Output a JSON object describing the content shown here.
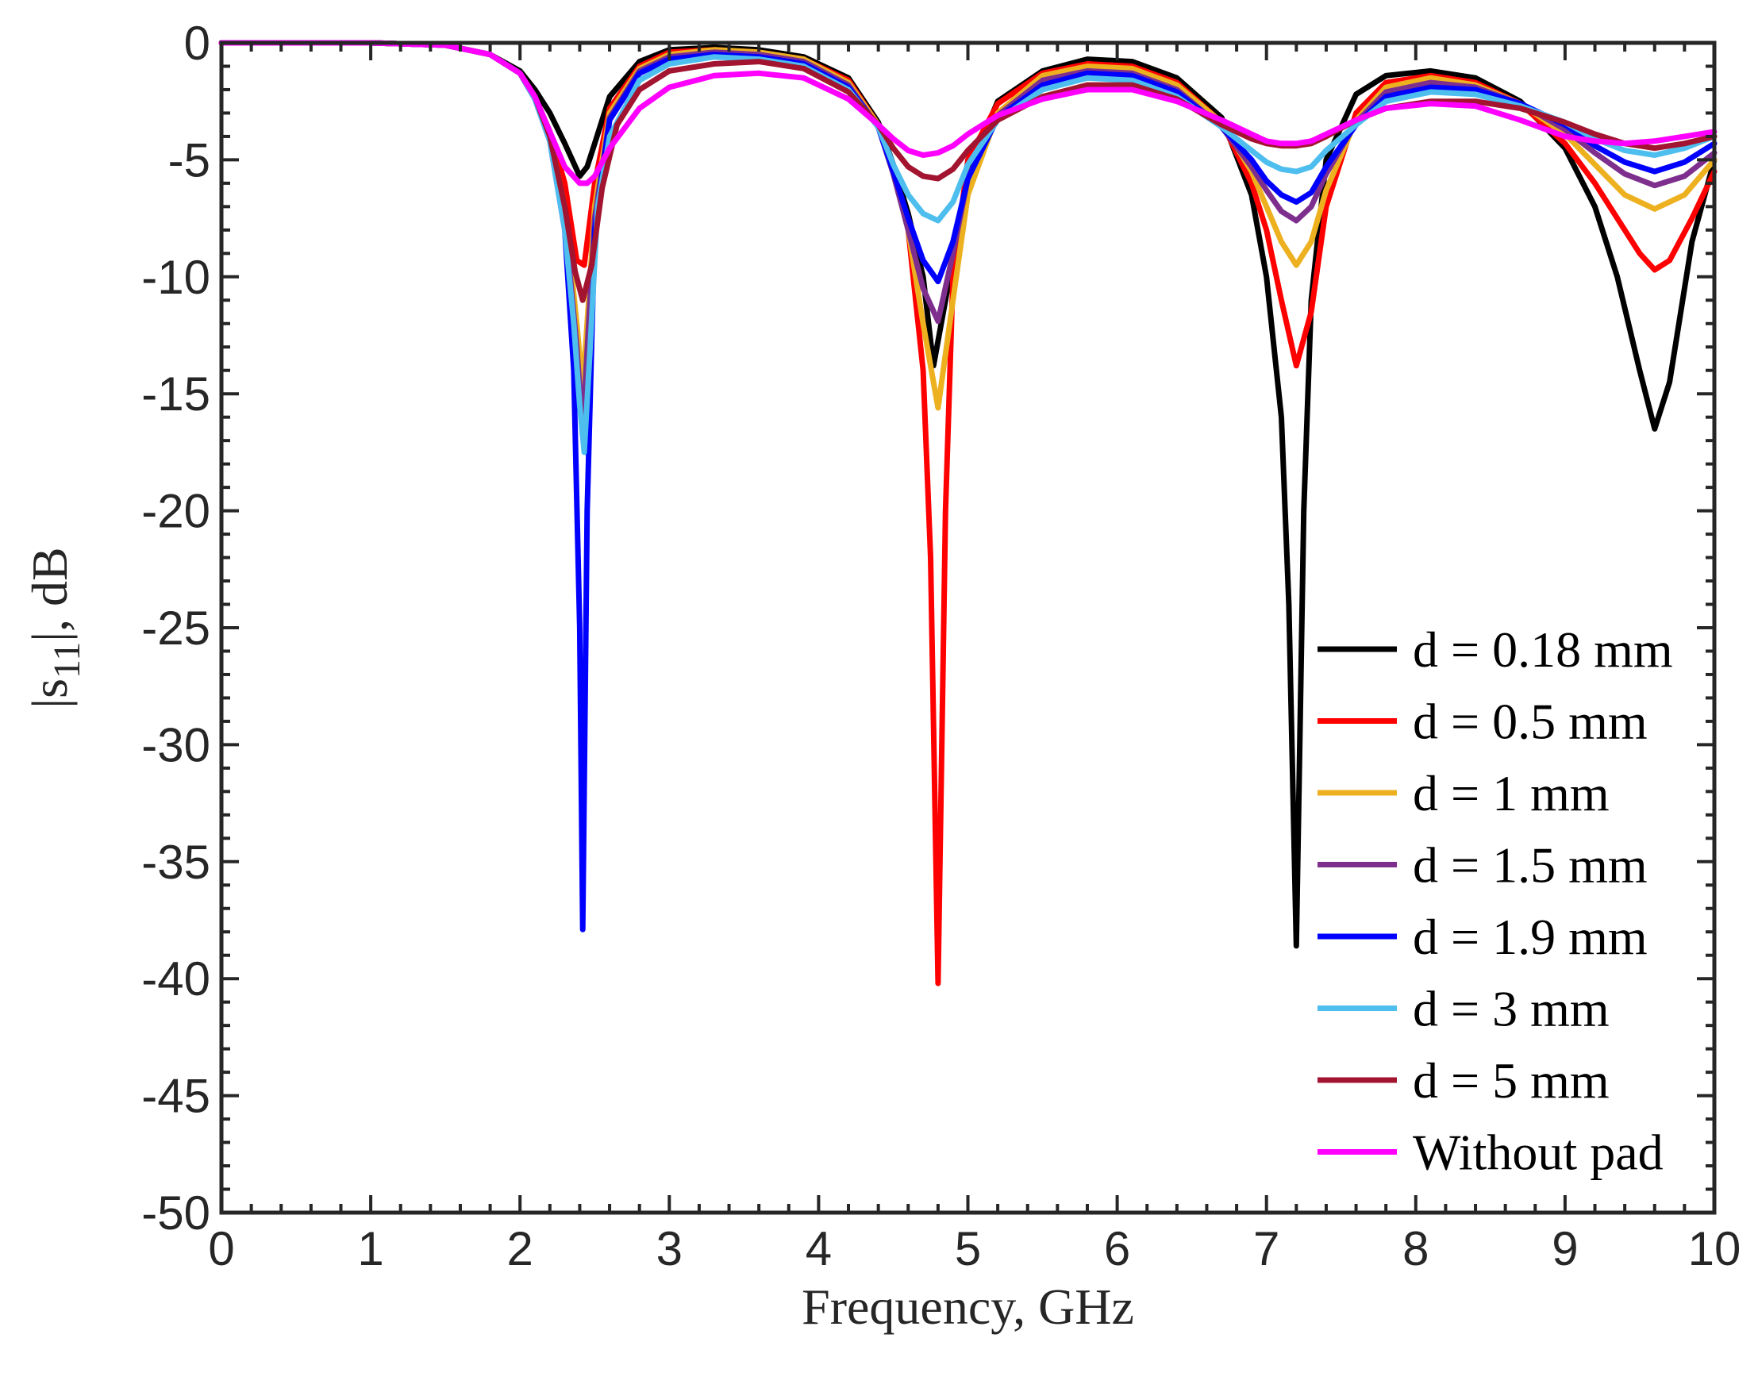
{
  "chart_data": {
    "type": "line",
    "title": "",
    "xlabel": "Frequency, GHz",
    "ylabel": "|s11|, dB",
    "xlim": [
      0,
      10
    ],
    "ylim": [
      -50,
      0
    ],
    "xticks": [
      0,
      1,
      2,
      3,
      4,
      5,
      6,
      7,
      8,
      9,
      10
    ],
    "yticks": [
      0,
      -5,
      -10,
      -15,
      -20,
      -25,
      -30,
      -35,
      -40,
      -45,
      -50
    ],
    "grid": false,
    "legend_position": "lower-right",
    "series": [
      {
        "name": "d = 0.18 mm",
        "color": "#000000",
        "x": [
          0,
          1,
          1.5,
          1.8,
          2,
          2.1,
          2.2,
          2.3,
          2.4,
          2.45,
          2.5,
          2.6,
          2.8,
          3.0,
          3.3,
          3.6,
          3.9,
          4.2,
          4.4,
          4.5,
          4.6,
          4.7,
          4.77,
          4.85,
          5.0,
          5.2,
          5.5,
          5.8,
          6.1,
          6.4,
          6.7,
          6.9,
          7.0,
          7.1,
          7.15,
          7.2,
          7.25,
          7.3,
          7.4,
          7.6,
          7.8,
          8.1,
          8.4,
          8.7,
          9.0,
          9.2,
          9.35,
          9.5,
          9.6,
          9.7,
          9.85,
          10
        ],
        "y": [
          0,
          0,
          -0.1,
          -0.5,
          -1.2,
          -2,
          -3,
          -4.3,
          -5.7,
          -5.3,
          -4.3,
          -2.3,
          -0.8,
          -0.3,
          -0.2,
          -0.3,
          -0.6,
          -1.5,
          -3.4,
          -5.2,
          -7.3,
          -10,
          -13.8,
          -11,
          -5.5,
          -2.5,
          -1.2,
          -0.7,
          -0.8,
          -1.5,
          -3.2,
          -6.5,
          -10,
          -16,
          -24,
          -38.6,
          -20,
          -11,
          -5,
          -2.2,
          -1.4,
          -1.2,
          -1.5,
          -2.5,
          -4.5,
          -7,
          -10,
          -14,
          -16.5,
          -14.5,
          -8.5,
          -5
        ]
      },
      {
        "name": "d = 0.5 mm",
        "color": "#ff0000",
        "x": [
          0,
          1,
          1.5,
          1.8,
          2,
          2.1,
          2.2,
          2.3,
          2.38,
          2.43,
          2.5,
          2.6,
          2.8,
          3.0,
          3.3,
          3.6,
          3.9,
          4.2,
          4.4,
          4.5,
          4.6,
          4.7,
          4.75,
          4.8,
          4.85,
          4.9,
          5.0,
          5.2,
          5.5,
          5.8,
          6.1,
          6.4,
          6.7,
          6.9,
          7.0,
          7.1,
          7.2,
          7.3,
          7.4,
          7.6,
          7.8,
          8.1,
          8.4,
          8.7,
          9.0,
          9.2,
          9.35,
          9.5,
          9.6,
          9.7,
          9.85,
          10
        ],
        "y": [
          0,
          0,
          -0.1,
          -0.5,
          -1.3,
          -2.3,
          -3.8,
          -6,
          -9.3,
          -9.5,
          -6,
          -2.8,
          -1.0,
          -0.4,
          -0.3,
          -0.4,
          -0.7,
          -1.6,
          -3.5,
          -5.5,
          -8,
          -14,
          -22,
          -40.2,
          -20,
          -10,
          -5,
          -2.6,
          -1.3,
          -0.9,
          -1.0,
          -1.7,
          -3.4,
          -6,
          -8,
          -11,
          -13.8,
          -11.5,
          -7,
          -3,
          -1.7,
          -1.4,
          -1.7,
          -2.6,
          -4.3,
          -6,
          -7.5,
          -9,
          -9.7,
          -9.3,
          -7.5,
          -5.5
        ]
      },
      {
        "name": "d = 1 mm",
        "color": "#edb120",
        "x": [
          0,
          1,
          1.5,
          1.8,
          2,
          2.1,
          2.2,
          2.3,
          2.38,
          2.42,
          2.46,
          2.5,
          2.6,
          2.8,
          3.0,
          3.3,
          3.6,
          3.9,
          4.2,
          4.4,
          4.5,
          4.6,
          4.7,
          4.8,
          4.9,
          5.0,
          5.2,
          5.5,
          5.8,
          6.1,
          6.4,
          6.7,
          6.9,
          7.0,
          7.1,
          7.2,
          7.3,
          7.4,
          7.6,
          7.8,
          8.1,
          8.4,
          8.7,
          9.0,
          9.2,
          9.4,
          9.6,
          9.8,
          10
        ],
        "y": [
          0,
          0,
          -0.1,
          -0.5,
          -1.3,
          -2.4,
          -4,
          -7,
          -12,
          -14.8,
          -11,
          -7,
          -3,
          -1.1,
          -0.5,
          -0.3,
          -0.4,
          -0.7,
          -1.7,
          -3.5,
          -5.5,
          -8,
          -12,
          -15.6,
          -11,
          -6.5,
          -3,
          -1.4,
          -1.0,
          -1.1,
          -1.8,
          -3.4,
          -5.5,
          -7,
          -8.5,
          -9.5,
          -8.5,
          -6.3,
          -3.3,
          -1.9,
          -1.5,
          -1.8,
          -2.6,
          -3.9,
          -5.2,
          -6.5,
          -7.1,
          -6.5,
          -5
        ]
      },
      {
        "name": "d = 1.5 mm",
        "color": "#7e2f8e",
        "x": [
          0,
          1,
          1.5,
          1.8,
          2,
          2.1,
          2.2,
          2.3,
          2.38,
          2.42,
          2.46,
          2.5,
          2.6,
          2.8,
          3.0,
          3.3,
          3.6,
          3.9,
          4.2,
          4.4,
          4.5,
          4.6,
          4.7,
          4.8,
          4.9,
          5.0,
          5.2,
          5.5,
          5.8,
          6.1,
          6.4,
          6.7,
          6.9,
          7.0,
          7.1,
          7.2,
          7.3,
          7.4,
          7.6,
          7.8,
          8.1,
          8.4,
          8.7,
          9.0,
          9.2,
          9.4,
          9.6,
          9.8,
          10
        ],
        "y": [
          0,
          0,
          -0.1,
          -0.5,
          -1.3,
          -2.4,
          -4.1,
          -7.5,
          -13,
          -16.5,
          -12,
          -7.5,
          -3.2,
          -1.2,
          -0.6,
          -0.4,
          -0.5,
          -0.8,
          -1.8,
          -3.6,
          -5.6,
          -8,
          -10.5,
          -11.9,
          -9,
          -5.8,
          -3.1,
          -1.6,
          -1.2,
          -1.3,
          -2.0,
          -3.6,
          -5.3,
          -6.3,
          -7.2,
          -7.6,
          -7,
          -5.6,
          -3.4,
          -2.1,
          -1.7,
          -1.9,
          -2.6,
          -3.7,
          -4.7,
          -5.6,
          -6.1,
          -5.7,
          -4.7
        ]
      },
      {
        "name": "d = 1.9 mm",
        "color": "#0000ff",
        "x": [
          0,
          1,
          1.5,
          1.8,
          2,
          2.1,
          2.2,
          2.3,
          2.36,
          2.4,
          2.42,
          2.45,
          2.5,
          2.6,
          2.8,
          3.0,
          3.3,
          3.6,
          3.9,
          4.2,
          4.4,
          4.5,
          4.6,
          4.7,
          4.8,
          4.9,
          5.0,
          5.2,
          5.5,
          5.8,
          6.1,
          6.4,
          6.7,
          6.9,
          7.0,
          7.1,
          7.2,
          7.3,
          7.4,
          7.6,
          7.8,
          8.1,
          8.4,
          8.7,
          9.0,
          9.2,
          9.4,
          9.6,
          9.8,
          10
        ],
        "y": [
          0,
          0,
          -0.1,
          -0.5,
          -1.3,
          -2.4,
          -4.2,
          -8,
          -14,
          -25,
          -37.9,
          -20,
          -8,
          -3.3,
          -1.3,
          -0.7,
          -0.5,
          -0.6,
          -0.9,
          -1.9,
          -3.6,
          -5.5,
          -7.5,
          -9.3,
          -10.2,
          -8.5,
          -5.8,
          -3.2,
          -1.8,
          -1.3,
          -1.4,
          -2.1,
          -3.6,
          -5.0,
          -5.9,
          -6.5,
          -6.8,
          -6.4,
          -5.3,
          -3.5,
          -2.3,
          -1.9,
          -2.0,
          -2.6,
          -3.5,
          -4.4,
          -5.1,
          -5.5,
          -5.1,
          -4.3
        ]
      },
      {
        "name": "d = 3 mm",
        "color": "#4dbeee",
        "x": [
          0,
          1,
          1.5,
          1.8,
          2,
          2.1,
          2.2,
          2.3,
          2.36,
          2.4,
          2.43,
          2.47,
          2.52,
          2.6,
          2.8,
          3.0,
          3.3,
          3.6,
          3.9,
          4.2,
          4.4,
          4.5,
          4.6,
          4.7,
          4.8,
          4.9,
          5.0,
          5.2,
          5.5,
          5.8,
          6.1,
          6.4,
          6.7,
          6.9,
          7.0,
          7.1,
          7.2,
          7.3,
          7.4,
          7.6,
          7.8,
          8.1,
          8.4,
          8.7,
          9.0,
          9.2,
          9.4,
          9.6,
          9.8,
          10
        ],
        "y": [
          0,
          0,
          -0.1,
          -0.5,
          -1.3,
          -2.4,
          -4.2,
          -8,
          -12,
          -15.5,
          -17.5,
          -13,
          -7,
          -4,
          -1.6,
          -0.9,
          -0.6,
          -0.7,
          -1.0,
          -2.0,
          -3.6,
          -5.2,
          -6.5,
          -7.3,
          -7.6,
          -6.8,
          -5.2,
          -3.3,
          -2.0,
          -1.5,
          -1.6,
          -2.3,
          -3.6,
          -4.6,
          -5.1,
          -5.4,
          -5.5,
          -5.3,
          -4.6,
          -3.5,
          -2.5,
          -2.1,
          -2.2,
          -2.7,
          -3.4,
          -4.1,
          -4.6,
          -4.8,
          -4.5,
          -4.0
        ]
      },
      {
        "name": "d = 5 mm",
        "color": "#a2142f",
        "x": [
          0,
          1,
          1.5,
          1.8,
          2,
          2.1,
          2.2,
          2.3,
          2.37,
          2.42,
          2.48,
          2.55,
          2.65,
          2.8,
          3.0,
          3.3,
          3.6,
          3.9,
          4.2,
          4.4,
          4.5,
          4.6,
          4.7,
          4.8,
          4.9,
          5.0,
          5.2,
          5.5,
          5.8,
          6.1,
          6.4,
          6.7,
          6.9,
          7.0,
          7.1,
          7.2,
          7.3,
          7.4,
          7.6,
          7.8,
          8.1,
          8.4,
          8.7,
          9.0,
          9.2,
          9.4,
          9.6,
          9.8,
          10
        ],
        "y": [
          0,
          0,
          -0.1,
          -0.5,
          -1.3,
          -2.3,
          -4,
          -7,
          -9.8,
          -11,
          -9.5,
          -6.2,
          -3.5,
          -2.0,
          -1.2,
          -0.9,
          -0.8,
          -1.1,
          -2.1,
          -3.5,
          -4.5,
          -5.3,
          -5.7,
          -5.8,
          -5.4,
          -4.6,
          -3.3,
          -2.3,
          -1.8,
          -1.8,
          -2.4,
          -3.5,
          -4.1,
          -4.3,
          -4.4,
          -4.4,
          -4.3,
          -4.0,
          -3.3,
          -2.8,
          -2.5,
          -2.5,
          -2.8,
          -3.4,
          -3.9,
          -4.3,
          -4.5,
          -4.3,
          -4.0
        ]
      },
      {
        "name": "Without pad",
        "color": "#ff00ff",
        "x": [
          0,
          1,
          1.5,
          1.8,
          2,
          2.1,
          2.2,
          2.3,
          2.4,
          2.45,
          2.5,
          2.6,
          2.8,
          3.0,
          3.3,
          3.6,
          3.9,
          4.2,
          4.4,
          4.5,
          4.6,
          4.7,
          4.8,
          4.9,
          5.0,
          5.2,
          5.5,
          5.8,
          6.1,
          6.4,
          6.7,
          6.9,
          7.0,
          7.1,
          7.2,
          7.3,
          7.4,
          7.6,
          7.8,
          8.1,
          8.4,
          8.7,
          9.0,
          9.2,
          9.4,
          9.6,
          9.8,
          10
        ],
        "y": [
          0,
          0,
          -0.1,
          -0.5,
          -1.3,
          -2.3,
          -3.8,
          -5.3,
          -6.0,
          -6.0,
          -5.7,
          -4.5,
          -2.8,
          -1.9,
          -1.4,
          -1.3,
          -1.5,
          -2.4,
          -3.5,
          -4.1,
          -4.6,
          -4.8,
          -4.7,
          -4.4,
          -3.9,
          -3.1,
          -2.4,
          -2.0,
          -2.0,
          -2.5,
          -3.3,
          -3.9,
          -4.2,
          -4.3,
          -4.3,
          -4.2,
          -3.9,
          -3.3,
          -2.8,
          -2.6,
          -2.7,
          -3.3,
          -4.0,
          -4.2,
          -4.3,
          -4.2,
          -4.0,
          -3.8
        ]
      }
    ]
  }
}
